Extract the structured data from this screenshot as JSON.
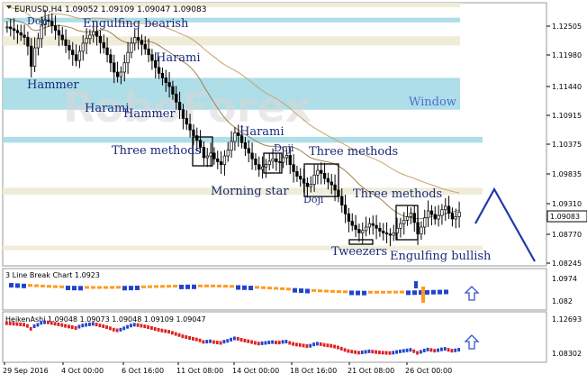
{
  "colors": {
    "band_beige": "#eeebd6",
    "band_blue": "#aadce6",
    "window_band": "#a9dde7",
    "candle_body": "#000000",
    "ma_slow": "#c8a46e",
    "ma_fast": "#a08050",
    "pattern_text": "#1a2a7a",
    "window_text": "#4a6fd0",
    "forecast": "#1f3aa8",
    "lb_up": "#2244cc",
    "lb_down": "#ff9a20",
    "ha_up": "#2244cc",
    "ha_down": "#dd2222",
    "arrow": "#3355cc",
    "price_box_bg": "#ffffff"
  },
  "main": {
    "header": "EURUSD,H4  1.09052 1.09109 1.09047 1.09083",
    "watermark": "RoboForex",
    "current_price": "1.09083",
    "y_ticks": [
      "1.12505",
      "1.11980",
      "1.11440",
      "1.10915",
      "1.10375",
      "1.09835",
      "1.09310",
      "1.08770",
      "1.08245"
    ],
    "patterns": [
      {
        "label": "Doji"
      },
      {
        "label": "Engulfing bearish"
      },
      {
        "label": "Harami"
      },
      {
        "label": "Hammer"
      },
      {
        "label": "Harami"
      },
      {
        "label": "Hammer"
      },
      {
        "label": "Three methods"
      },
      {
        "label": "Harami"
      },
      {
        "label": "Doji"
      },
      {
        "label": "Three methods"
      },
      {
        "label": "Morning star"
      },
      {
        "label": "Doji"
      },
      {
        "label": "Three methods"
      },
      {
        "label": "Tweezers"
      },
      {
        "label": "Engulfing bullish"
      },
      {
        "label": "Window"
      }
    ]
  },
  "sub1": {
    "title": "3 Line Break Chart 1.0923",
    "y_ticks": [
      "1.0974",
      "1.082"
    ]
  },
  "sub2": {
    "title": "HeikenAshi 1.09048 1.09073 1.09048 1.09109 1.09047",
    "y_ticks": [
      "1.12693",
      "1.08302"
    ]
  },
  "x_axis": [
    "29 Sep 2016",
    "4 Oct 00:00",
    "6 Oct 16:00",
    "11 Oct 08:00",
    "14 Oct 00:00",
    "18 Oct 16:00",
    "21 Oct 08:00",
    "26 Oct 00:00"
  ],
  "chart_data": {
    "type": "candlestick",
    "title": "EURUSD,H4",
    "ylim": [
      1.0815,
      1.127
    ],
    "close_series": [
      1.1228,
      1.1225,
      1.1222,
      1.1218,
      1.1214,
      1.121,
      1.1195,
      1.116,
      1.1192,
      1.1208,
      1.1232,
      1.124,
      1.1238,
      1.123,
      1.1222,
      1.1214,
      1.1206,
      1.1196,
      1.1188,
      1.118,
      1.117,
      1.1186,
      1.12,
      1.1208,
      1.1214,
      1.122,
      1.1212,
      1.1201,
      1.1192,
      1.118,
      1.1166,
      1.115,
      1.1142,
      1.115,
      1.1166,
      1.1184,
      1.12,
      1.121,
      1.1205,
      1.1198,
      1.119,
      1.118,
      1.117,
      1.1158,
      1.1148,
      1.114,
      1.1132,
      1.1125,
      1.1112,
      1.1098,
      1.1085,
      1.107,
      1.106,
      1.105,
      1.104,
      1.1032,
      1.102,
      1.1002,
      1.1005,
      1.101,
      1.1,
      1.0995,
      1.099,
      1.1005,
      1.1015,
      1.103,
      1.1045,
      1.104,
      1.1028,
      1.1018,
      1.101,
      1.1,
      1.099,
      1.0982,
      1.0986,
      1.099,
      1.0996,
      1.1,
      1.0995,
      1.0994,
      1.1002,
      1.1006,
      1.099,
      1.0978,
      1.097,
      1.0965,
      1.0958,
      1.0952,
      1.0956,
      1.0972,
      1.098,
      1.0975,
      1.0966,
      1.096,
      1.0955,
      1.0946,
      1.0935,
      1.092,
      1.0905,
      1.0892,
      1.0885,
      1.0878,
      1.0872,
      1.0876,
      1.0882,
      1.0888,
      1.0885,
      1.088,
      1.0875,
      1.0872,
      1.087,
      1.0868,
      1.0872,
      1.088,
      1.0888,
      1.0894,
      1.09,
      1.0906,
      1.089,
      1.087,
      1.0882,
      1.0898,
      1.091,
      1.0904,
      1.0896,
      1.0902,
      1.0912,
      1.0918,
      1.0906,
      1.0896,
      1.09,
      1.0908
    ],
    "horizontal_zones": [
      {
        "name": "resistance",
        "from": 1.1262,
        "to": 1.127,
        "color": "beige"
      },
      {
        "name": "resistance",
        "from": 1.1236,
        "to": 1.1244,
        "color": "blue"
      },
      {
        "name": "resistance",
        "from": 1.1196,
        "to": 1.1212,
        "color": "beige"
      },
      {
        "name": "window",
        "from": 1.1085,
        "to": 1.114,
        "color": "blue"
      },
      {
        "name": "resistance",
        "from": 1.1028,
        "to": 1.1038,
        "color": "blue"
      },
      {
        "name": "support",
        "from": 1.0938,
        "to": 1.095,
        "color": "beige"
      },
      {
        "name": "support",
        "from": 1.0842,
        "to": 1.085,
        "color": "beige"
      }
    ],
    "forecast": [
      {
        "dir": "up",
        "from": 1.088,
        "to": 1.095
      },
      {
        "dir": "down",
        "from": 1.095,
        "to": 1.0828
      }
    ]
  }
}
